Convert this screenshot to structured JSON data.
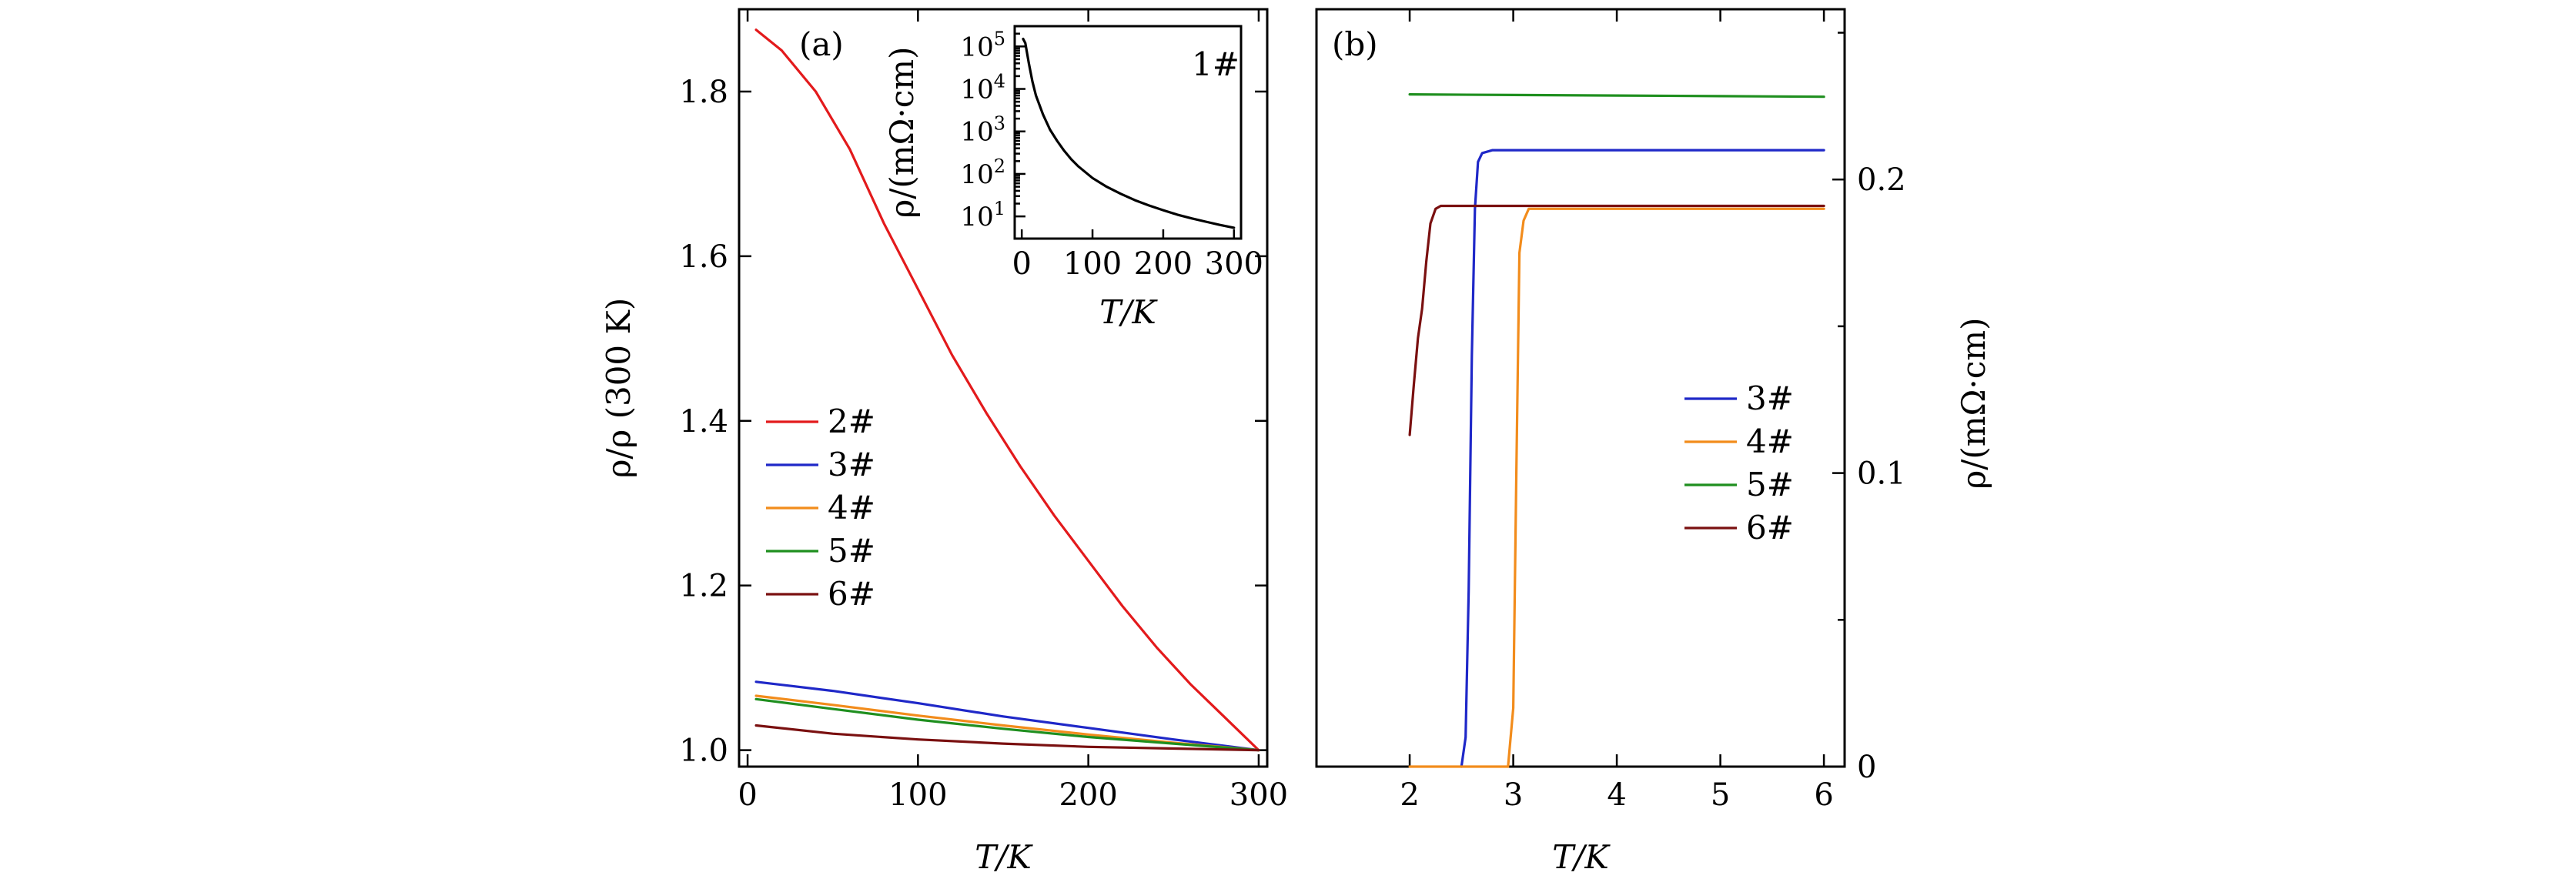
{
  "chart_data": [
    {
      "type": "line",
      "panel_label": "(a)",
      "xlabel": "T/K",
      "ylabel": "ρ/ρ (300 K)",
      "xlim": [
        -5,
        305
      ],
      "ylim": [
        0.98,
        1.9
      ],
      "xticks": [
        0,
        100,
        200,
        300
      ],
      "yticks": [
        1.0,
        1.2,
        1.4,
        1.6,
        1.8
      ],
      "ytick_labels": [
        "1.0",
        "1.2",
        "1.4",
        "1.6",
        "1.8"
      ],
      "legend_position": "center-left",
      "series": [
        {
          "name": "2#",
          "color": "#e31a1c",
          "x": [
            5,
            20,
            40,
            60,
            80,
            100,
            120,
            140,
            160,
            180,
            200,
            220,
            240,
            260,
            280,
            300
          ],
          "y": [
            1.875,
            1.85,
            1.8,
            1.73,
            1.64,
            1.56,
            1.48,
            1.41,
            1.345,
            1.285,
            1.23,
            1.175,
            1.125,
            1.08,
            1.04,
            1.0
          ]
        },
        {
          "name": "3#",
          "color": "#1f28c8",
          "x": [
            5,
            50,
            100,
            150,
            200,
            250,
            300
          ],
          "y": [
            1.083,
            1.072,
            1.057,
            1.041,
            1.027,
            1.013,
            1.0
          ]
        },
        {
          "name": "4#",
          "color": "#f28c1c",
          "x": [
            5,
            50,
            100,
            150,
            200,
            250,
            300
          ],
          "y": [
            1.066,
            1.055,
            1.042,
            1.03,
            1.019,
            1.009,
            1.0
          ]
        },
        {
          "name": "5#",
          "color": "#1f8f1f",
          "x": [
            5,
            50,
            100,
            150,
            200,
            250,
            300
          ],
          "y": [
            1.062,
            1.05,
            1.037,
            1.026,
            1.016,
            1.008,
            1.0
          ]
        },
        {
          "name": "6#",
          "color": "#7a1010",
          "x": [
            5,
            50,
            100,
            150,
            200,
            250,
            300
          ],
          "y": [
            1.03,
            1.02,
            1.013,
            1.008,
            1.004,
            1.002,
            1.0
          ]
        }
      ]
    },
    {
      "type": "line",
      "role": "inset",
      "annotation": "1#",
      "xlabel": "T/K",
      "ylabel": "ρ/(mΩ·cm)",
      "yscale": "log",
      "xlim": [
        -10,
        310
      ],
      "ylim": [
        3,
        300000
      ],
      "xticks": [
        0,
        100,
        200,
        300
      ],
      "ytick_exponents": [
        "1",
        "2",
        "3",
        "4",
        "5"
      ],
      "ytick_base": "10",
      "series": [
        {
          "name": "1#",
          "color": "#000000",
          "x": [
            2,
            5,
            10,
            15,
            20,
            30,
            40,
            50,
            60,
            70,
            80,
            100,
            120,
            140,
            160,
            180,
            200,
            220,
            240,
            260,
            280,
            300
          ],
          "y": [
            150000,
            120000,
            40000,
            15000,
            7000,
            2500,
            1100,
            600,
            350,
            220,
            150,
            80,
            50,
            34,
            24,
            18,
            14,
            11,
            9,
            7.5,
            6.3,
            5.4
          ]
        }
      ]
    },
    {
      "type": "line",
      "panel_label": "(b)",
      "xlabel": "T/K",
      "ylabel": "ρ/(mΩ·cm)",
      "yaxis_side": "right",
      "xlim": [
        1.1,
        6.2
      ],
      "ylim": [
        0,
        0.258
      ],
      "xticks": [
        2,
        3,
        4,
        5,
        6
      ],
      "yticks": [
        0,
        0.1,
        0.2
      ],
      "ytick_labels": [
        "0",
        "0.1",
        "0.2"
      ],
      "legend_position": "center-right",
      "series": [
        {
          "name": "3#",
          "color": "#1f28c8",
          "x": [
            2.5,
            2.54,
            2.57,
            2.6,
            2.63,
            2.66,
            2.7,
            2.8,
            3.5,
            4.5,
            6.0
          ],
          "y": [
            0.0,
            0.01,
            0.06,
            0.14,
            0.19,
            0.206,
            0.209,
            0.21,
            0.21,
            0.21,
            0.21
          ]
        },
        {
          "name": "4#",
          "color": "#f28c1c",
          "x": [
            2.0,
            2.95,
            3.0,
            3.03,
            3.06,
            3.1,
            3.15,
            3.3,
            4.0,
            5.0,
            6.0
          ],
          "y": [
            0.0,
            0.0,
            0.02,
            0.1,
            0.175,
            0.186,
            0.19,
            0.19,
            0.19,
            0.19,
            0.19
          ]
        },
        {
          "name": "5#",
          "color": "#1f8f1f",
          "x": [
            2.0,
            3.0,
            4.0,
            5.0,
            6.0
          ],
          "y": [
            0.229,
            0.2288,
            0.2286,
            0.2284,
            0.2282
          ]
        },
        {
          "name": "6#",
          "color": "#7a1010",
          "x": [
            2.0,
            2.04,
            2.08,
            2.12,
            2.16,
            2.2,
            2.25,
            2.3,
            2.4,
            2.6,
            3.0,
            4.0,
            5.0,
            6.0
          ],
          "y": [
            0.113,
            0.13,
            0.146,
            0.156,
            0.172,
            0.185,
            0.19,
            0.191,
            0.191,
            0.191,
            0.191,
            0.191,
            0.191,
            0.191
          ]
        }
      ]
    }
  ]
}
